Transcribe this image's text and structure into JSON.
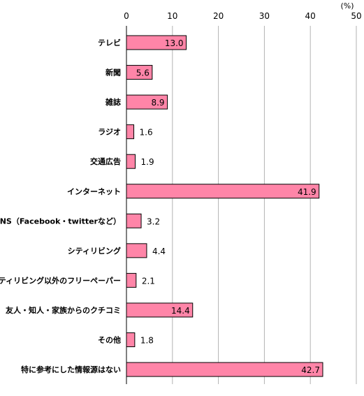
{
  "chart_data": {
    "type": "bar",
    "orientation": "horizontal",
    "unit": "(%)",
    "xlim": [
      0,
      50
    ],
    "ticks": [
      0,
      10,
      20,
      30,
      40,
      50
    ],
    "grid": true,
    "categories": [
      "テレビ",
      "新聞",
      "雑誌",
      "ラジオ",
      "交通広告",
      "インターネット",
      "SNS（Facebook・twitterなど）",
      "シティリビング",
      "シティリビング以外のフリーペーパー",
      "友人・知人・家族からのクチコミ",
      "その他",
      "特に参考にした情報源はない"
    ],
    "values": [
      13.0,
      5.6,
      8.9,
      1.6,
      1.9,
      41.9,
      3.2,
      4.4,
      2.1,
      14.4,
      1.8,
      42.7
    ],
    "value_labels": [
      "13.0",
      "5.6",
      "8.9",
      "1.6",
      "1.9",
      "41.9",
      "3.2",
      "4.4",
      "2.1",
      "14.4",
      "1.8",
      "42.7"
    ],
    "bar_color": "#ff85a8",
    "bar_stroke": "#000000",
    "grid_color": "#b3b3b3"
  }
}
